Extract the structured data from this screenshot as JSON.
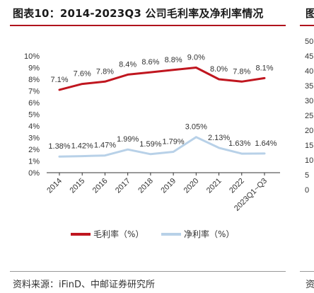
{
  "header": {
    "title": "图表10：2014-2023Q3 公司毛利率及净利率情况",
    "right_title_fragment": "图"
  },
  "footer": {
    "source": "资料来源：iFinD、中邮证券研究所",
    "right_fragment": "资"
  },
  "colors": {
    "accent": "#b0131d",
    "gross_line": "#c0161f",
    "net_line": "#b8d1e8"
  },
  "right_axis_fragment": {
    "ticks": [
      "50",
      "45",
      "40",
      "35",
      "30",
      "25",
      "20",
      "15",
      "10",
      "5",
      "0"
    ]
  },
  "chart_data": {
    "type": "line",
    "categories": [
      "2014",
      "2015",
      "2016",
      "2017",
      "2018",
      "2019",
      "2020",
      "2021",
      "2022",
      "2023Q1~Q3"
    ],
    "series": [
      {
        "name": "毛利率（%）",
        "values": [
          7.1,
          7.6,
          7.8,
          8.4,
          8.6,
          8.8,
          9.0,
          8.0,
          7.8,
          8.1
        ],
        "labels": [
          "7.1%",
          "7.6%",
          "7.8%",
          "8.4%",
          "8.6%",
          "8.8%",
          "9.0%",
          "8.0%",
          "7.8%",
          "8.1%"
        ]
      },
      {
        "name": "净利率（%）",
        "values": [
          1.38,
          1.42,
          1.47,
          1.99,
          1.59,
          1.79,
          3.05,
          2.13,
          1.63,
          1.64
        ],
        "labels": [
          "1.38%",
          "1.42%",
          "1.47%",
          "1.99%",
          "1.59%",
          "1.79%",
          "3.05%",
          "2.13%",
          "1.63%",
          "1.64%"
        ]
      }
    ],
    "yticks": [
      "0%",
      "1%",
      "2%",
      "3%",
      "4%",
      "5%",
      "6%",
      "7%",
      "8%",
      "9%",
      "10%"
    ],
    "ylim": [
      0,
      10
    ],
    "legend_position": "bottom",
    "grid": false
  }
}
